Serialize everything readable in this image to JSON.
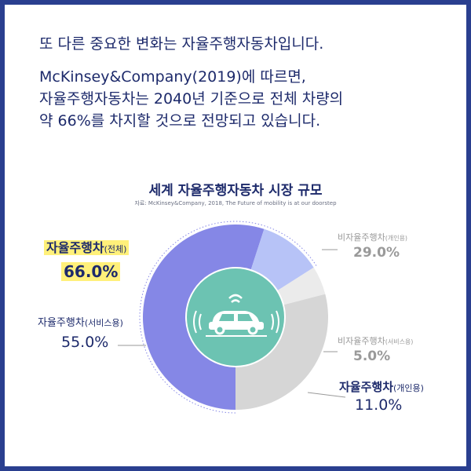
{
  "intro": {
    "lead": "또 다른 중요한 변화는 자율주행자동차입니다.",
    "body": [
      "McKinsey&Company(2019)에 따르면,",
      "자율주행자동차는 2040년 기준으로 전체 차량의",
      "약 66%를 차지할 것으로 전망되고 있습니다."
    ]
  },
  "chart_data": {
    "type": "pie",
    "title": "세계 자율주행자동차 시장 규모",
    "source": "자료: McKinsey&Company, 2018,  The Future of mobility is at our doorstep",
    "slices": [
      {
        "key": "autonomous_service",
        "name": "자율주행차",
        "qualifier": "(서비스용)",
        "value": 55.0,
        "label": "55.0%",
        "color": "#8587e6"
      },
      {
        "key": "autonomous_personal",
        "name": "자율주행차",
        "qualifier": "(개인용)",
        "value": 11.0,
        "label": "11.0%",
        "color": "#b7c3f7"
      },
      {
        "key": "nonautonomous_service",
        "name": "비자율주행차",
        "qualifier": "(서비스용)",
        "value": 5.0,
        "label": "5.0%",
        "color": "#ebebeb"
      },
      {
        "key": "nonautonomous_personal",
        "name": "비자율주행차",
        "qualifier": "(개인용)",
        "value": 29.0,
        "label": "29.0%",
        "color": "#d6d6d6"
      }
    ],
    "total_annotation": {
      "name": "자율주행차",
      "qualifier": "(전체)",
      "value": 66.0,
      "label": "66.0%",
      "highlight_color": "#fff07a"
    },
    "center_icon": "autonomous-car-icon",
    "center_color": "#6cc3b2",
    "start": "bottom",
    "direction": "clockwise",
    "grid": false
  }
}
